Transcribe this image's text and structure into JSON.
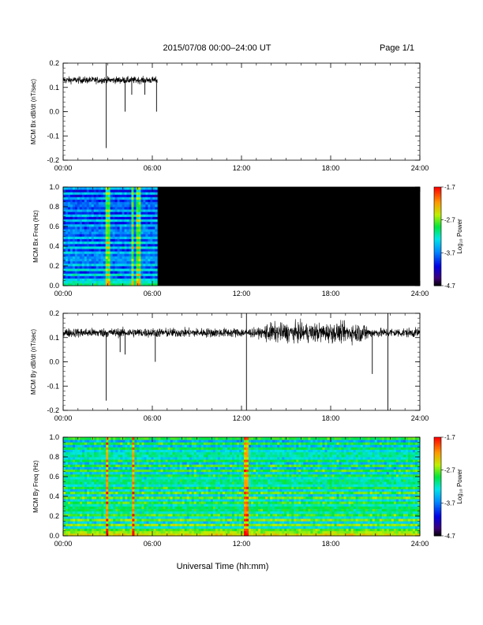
{
  "header": {
    "title": "2015/07/08  00:00–24:00 UT",
    "page": "Page 1/1"
  },
  "xlabel": "Universal Time (hh:mm)",
  "x_ticks": [
    "00:00",
    "06:00",
    "12:00",
    "18:00",
    "24:00"
  ],
  "colors": {
    "trace": "#000000",
    "axis": "#000000",
    "no_data": "#000000"
  },
  "chart_data": [
    {
      "type": "line",
      "panel": 1,
      "ylabel": "MCM Bx dB/dt (nT/sec)",
      "xlim": [
        "00:00",
        "24:00"
      ],
      "ylim": [
        -0.2,
        0.2
      ],
      "y_ticks": [
        "0.2",
        "0.1",
        "0.0",
        "-0.1",
        "-0.2"
      ],
      "data_end": "06:20",
      "baseline": 0.13,
      "noise": 0.015,
      "spikes": [
        {
          "t": "02:54",
          "y": -0.15
        },
        {
          "t": "02:54",
          "y": 0.2
        },
        {
          "t": "04:10",
          "y": 0.0
        },
        {
          "t": "04:37",
          "y": 0.07
        },
        {
          "t": "05:30",
          "y": 0.07
        },
        {
          "t": "06:17",
          "y": 0.0
        }
      ]
    },
    {
      "type": "heatmap",
      "panel": 2,
      "ylabel": "MCM Bx Freq (Hz)",
      "xlim": [
        "00:00",
        "24:00"
      ],
      "ylim": [
        0.0,
        1.0
      ],
      "y_ticks": [
        "1.0",
        "0.8",
        "0.6",
        "0.4",
        "0.2",
        "0.0"
      ],
      "data_end": "06:20",
      "colorbar": {
        "label": "Log₁₀ Power",
        "ticks": [
          "-1.7",
          "-2.7",
          "-3.7",
          "-4.7"
        ],
        "range": [
          -4.7,
          -1.7
        ]
      },
      "level_mean": -3.8,
      "harmonic_spacing_hz": 0.055,
      "bright_streaks": [
        "03:00",
        "04:40",
        "05:05"
      ]
    },
    {
      "type": "line",
      "panel": 3,
      "ylabel": "MCM By dB/dt (nT/sec)",
      "xlim": [
        "00:00",
        "24:00"
      ],
      "ylim": [
        -0.2,
        0.2
      ],
      "y_ticks": [
        "0.2",
        "0.1",
        "0.0",
        "-0.1",
        "-0.2"
      ],
      "data_end": "24:00",
      "baseline": 0.12,
      "noise": 0.02,
      "noisy_interval": [
        "13:30",
        "20:30"
      ],
      "spikes": [
        {
          "t": "02:54",
          "y": -0.16
        },
        {
          "t": "03:50",
          "y": 0.04
        },
        {
          "t": "04:10",
          "y": 0.03
        },
        {
          "t": "06:12",
          "y": 0.0
        },
        {
          "t": "12:20",
          "y": -0.2
        },
        {
          "t": "12:20",
          "y": 0.2
        },
        {
          "t": "20:48",
          "y": -0.05
        },
        {
          "t": "21:51",
          "y": -0.2
        },
        {
          "t": "21:51",
          "y": 0.2
        }
      ]
    },
    {
      "type": "heatmap",
      "panel": 4,
      "ylabel": "MCM By Freq (Hz)",
      "xlim": [
        "00:00",
        "24:00"
      ],
      "ylim": [
        0.0,
        1.0
      ],
      "y_ticks": [
        "1.0",
        "0.8",
        "0.6",
        "0.4",
        "0.2",
        "0.0"
      ],
      "data_end": "24:00",
      "colorbar": {
        "label": "Log₁₀ Power",
        "ticks": [
          "-1.7",
          "-2.7",
          "-3.7",
          "-4.7"
        ],
        "range": [
          -4.7,
          -1.7
        ]
      },
      "level_mean": -3.2,
      "harmonic_spacing_hz": 0.055,
      "bright_streaks": [
        "03:00",
        "04:40",
        "12:20"
      ]
    }
  ]
}
